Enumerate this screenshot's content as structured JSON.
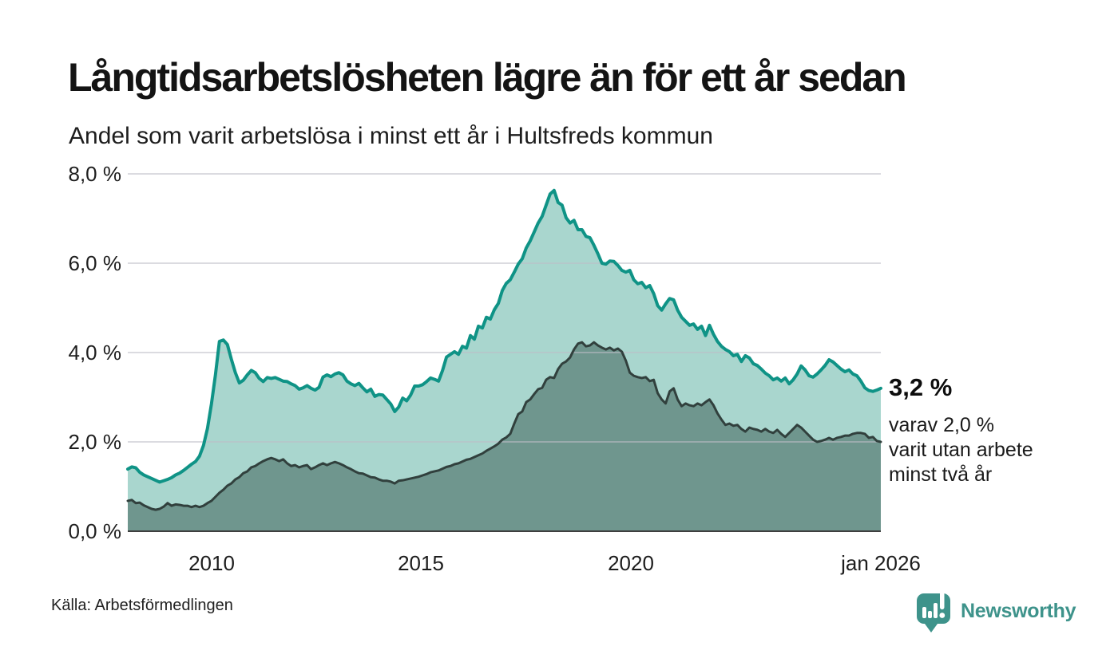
{
  "header": {
    "title": "Långtidsarbetslösheten lägre än för ett år sedan",
    "subtitle": "Andel som varit arbetslösa i minst ett år i Hultsfreds kommun"
  },
  "chart_data": {
    "type": "area",
    "title": "Långtidsarbetslösheten lägre än för ett år sedan",
    "subtitle": "Andel som varit arbetslösa i minst ett år i Hultsfreds kommun",
    "unit": "%",
    "grid": true,
    "ylim": [
      0,
      8
    ],
    "x_range": [
      2008.0,
      2026.0
    ],
    "y_ticks": [
      {
        "label": "0,0 %",
        "value": 0
      },
      {
        "label": "2,0 %",
        "value": 2
      },
      {
        "label": "4,0 %",
        "value": 4
      },
      {
        "label": "6,0 %",
        "value": 6
      },
      {
        "label": "8,0 %",
        "value": 8
      }
    ],
    "x_ticks": [
      {
        "label": "2010",
        "year": 2010
      },
      {
        "label": "2015",
        "year": 2015
      },
      {
        "label": "2020",
        "year": 2020
      },
      {
        "label": "jan 2026",
        "year": 2026
      }
    ],
    "series": [
      {
        "name": "Andel arbetslösa minst ett år",
        "line_color": "#0F9386",
        "fill_color": "#A9D6CE",
        "line_width": 4,
        "last_value": 3.2,
        "values": [
          1.39,
          1.44,
          1.42,
          1.32,
          1.26,
          1.22,
          1.18,
          1.14,
          1.1,
          1.13,
          1.16,
          1.2,
          1.26,
          1.3,
          1.36,
          1.43,
          1.5,
          1.56,
          1.68,
          1.92,
          2.3,
          2.85,
          3.5,
          4.25,
          4.28,
          4.18,
          3.85,
          3.55,
          3.32,
          3.38,
          3.5,
          3.6,
          3.55,
          3.42,
          3.35,
          3.44,
          3.42,
          3.44,
          3.4,
          3.36,
          3.35,
          3.3,
          3.26,
          3.18,
          3.21,
          3.26,
          3.2,
          3.16,
          3.22,
          3.45,
          3.5,
          3.46,
          3.52,
          3.55,
          3.5,
          3.36,
          3.3,
          3.26,
          3.31,
          3.21,
          3.12,
          3.18,
          3.02,
          3.06,
          3.05,
          2.95,
          2.85,
          2.68,
          2.78,
          2.98,
          2.92,
          3.05,
          3.25,
          3.25,
          3.28,
          3.35,
          3.43,
          3.4,
          3.36,
          3.6,
          3.9,
          3.96,
          4.02,
          3.96,
          4.14,
          4.1,
          4.38,
          4.3,
          4.59,
          4.55,
          4.79,
          4.75,
          4.96,
          5.1,
          5.39,
          5.55,
          5.63,
          5.8,
          5.98,
          6.1,
          6.34,
          6.5,
          6.7,
          6.9,
          7.05,
          7.3,
          7.55,
          7.63,
          7.36,
          7.3,
          7.02,
          6.9,
          6.96,
          6.75,
          6.75,
          6.6,
          6.57,
          6.4,
          6.21,
          6.0,
          5.98,
          6.05,
          6.04,
          5.95,
          5.84,
          5.8,
          5.84,
          5.63,
          5.54,
          5.57,
          5.45,
          5.5,
          5.32,
          5.05,
          4.95,
          5.09,
          5.21,
          5.18,
          4.95,
          4.79,
          4.7,
          4.61,
          4.64,
          4.52,
          4.59,
          4.38,
          4.61,
          4.41,
          4.25,
          4.14,
          4.07,
          4.02,
          3.93,
          3.96,
          3.8,
          3.93,
          3.88,
          3.75,
          3.71,
          3.63,
          3.54,
          3.48,
          3.39,
          3.43,
          3.36,
          3.43,
          3.3,
          3.39,
          3.52,
          3.7,
          3.61,
          3.48,
          3.45,
          3.52,
          3.61,
          3.71,
          3.84,
          3.79,
          3.71,
          3.63,
          3.57,
          3.61,
          3.52,
          3.48,
          3.36,
          3.21,
          3.15,
          3.13,
          3.16,
          3.2
        ]
      },
      {
        "name": "Andel arbetslösa minst två år",
        "line_color": "#31403D",
        "fill_color": "#6F968E",
        "line_width": 3,
        "last_value": 2.0,
        "values": [
          0.68,
          0.7,
          0.63,
          0.64,
          0.58,
          0.54,
          0.5,
          0.48,
          0.5,
          0.55,
          0.63,
          0.57,
          0.6,
          0.59,
          0.57,
          0.57,
          0.54,
          0.57,
          0.54,
          0.57,
          0.63,
          0.68,
          0.77,
          0.86,
          0.93,
          1.02,
          1.07,
          1.16,
          1.21,
          1.3,
          1.34,
          1.43,
          1.46,
          1.52,
          1.57,
          1.61,
          1.64,
          1.61,
          1.57,
          1.61,
          1.52,
          1.46,
          1.48,
          1.43,
          1.46,
          1.48,
          1.39,
          1.43,
          1.48,
          1.52,
          1.48,
          1.52,
          1.55,
          1.52,
          1.48,
          1.43,
          1.39,
          1.34,
          1.3,
          1.29,
          1.25,
          1.21,
          1.2,
          1.16,
          1.13,
          1.13,
          1.11,
          1.07,
          1.13,
          1.14,
          1.16,
          1.18,
          1.2,
          1.22,
          1.25,
          1.28,
          1.32,
          1.34,
          1.36,
          1.4,
          1.44,
          1.46,
          1.5,
          1.52,
          1.56,
          1.6,
          1.62,
          1.66,
          1.7,
          1.74,
          1.8,
          1.85,
          1.9,
          1.96,
          2.05,
          2.1,
          2.18,
          2.41,
          2.62,
          2.68,
          2.89,
          2.95,
          3.07,
          3.18,
          3.21,
          3.39,
          3.45,
          3.43,
          3.63,
          3.75,
          3.8,
          3.89,
          4.07,
          4.2,
          4.23,
          4.14,
          4.16,
          4.23,
          4.16,
          4.11,
          4.07,
          4.11,
          4.05,
          4.09,
          4.02,
          3.82,
          3.55,
          3.48,
          3.45,
          3.43,
          3.45,
          3.36,
          3.39,
          3.09,
          2.95,
          2.86,
          3.13,
          3.2,
          2.95,
          2.8,
          2.86,
          2.82,
          2.8,
          2.86,
          2.82,
          2.89,
          2.95,
          2.82,
          2.64,
          2.5,
          2.38,
          2.41,
          2.36,
          2.38,
          2.29,
          2.23,
          2.32,
          2.29,
          2.27,
          2.23,
          2.29,
          2.23,
          2.2,
          2.27,
          2.18,
          2.11,
          2.2,
          2.29,
          2.38,
          2.32,
          2.23,
          2.14,
          2.05,
          2.0,
          2.02,
          2.05,
          2.09,
          2.05,
          2.09,
          2.11,
          2.14,
          2.14,
          2.18,
          2.2,
          2.2,
          2.18,
          2.09,
          2.11,
          2.02,
          2.0
        ]
      }
    ],
    "annotation": {
      "value_label": "3,2 %",
      "detail_lines": [
        "varav 2,0 %",
        "varit utan arbete",
        "minst två år"
      ]
    }
  },
  "source": {
    "label": "Källa: Arbetsförmedlingen"
  },
  "branding": {
    "name": "Newsworthy",
    "icon": "newsworthy-chart-bubble-icon",
    "color": "#3E938B"
  }
}
